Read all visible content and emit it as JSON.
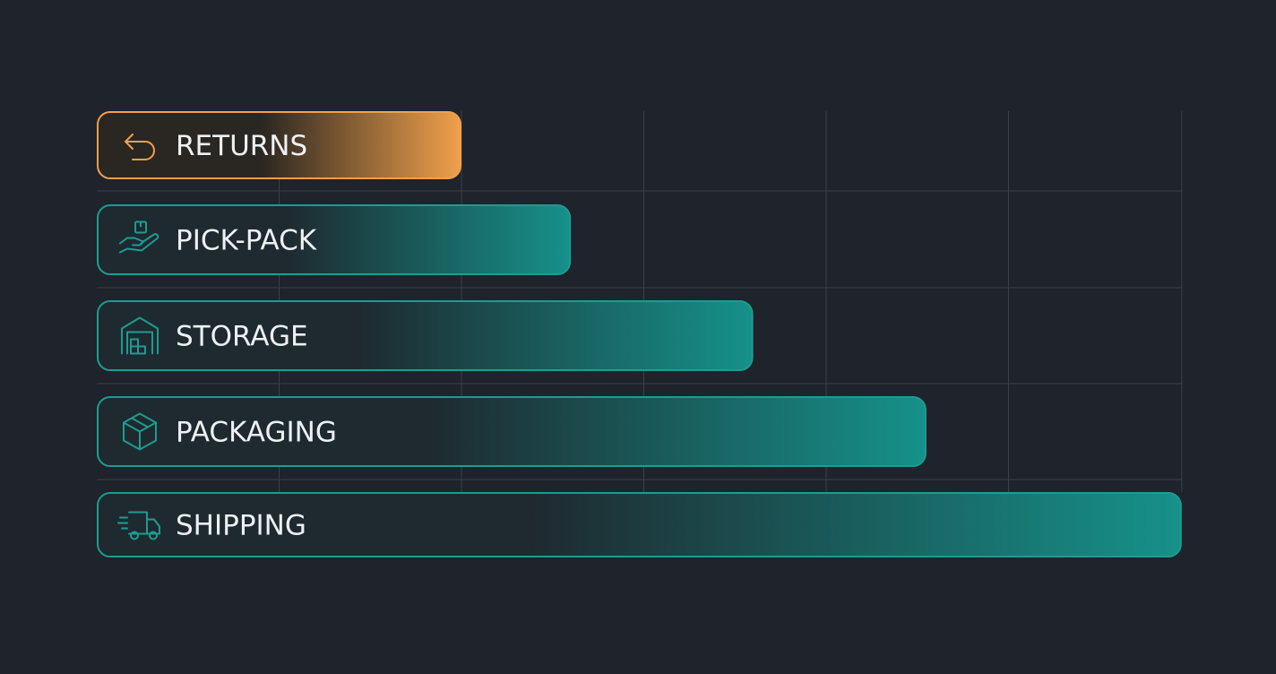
{
  "chart_data": {
    "type": "bar",
    "orientation": "horizontal",
    "title": "",
    "xlabel": "",
    "ylabel": "",
    "categories": [
      "RETURNS",
      "PICK-PACK",
      "STORAGE",
      "PACKAGING",
      "SHIPPING"
    ],
    "values": [
      2.0,
      2.6,
      3.6,
      4.55,
      5.95
    ],
    "xlim": [
      0,
      5.95
    ],
    "grid": true,
    "legend": "none",
    "icons": [
      "return-arrow-icon",
      "hand-box-icon",
      "warehouse-icon",
      "package-box-icon",
      "delivery-truck-icon"
    ],
    "colors": {
      "background": "#1f232b",
      "grid": "#3a4049",
      "highlight": "#f0a04b",
      "highlight_dark": "#2a2621",
      "teal": "#16918a",
      "teal_dark": "#1e2a30",
      "teal_border": "#1d9c91",
      "label": "#eef1f3"
    }
  }
}
